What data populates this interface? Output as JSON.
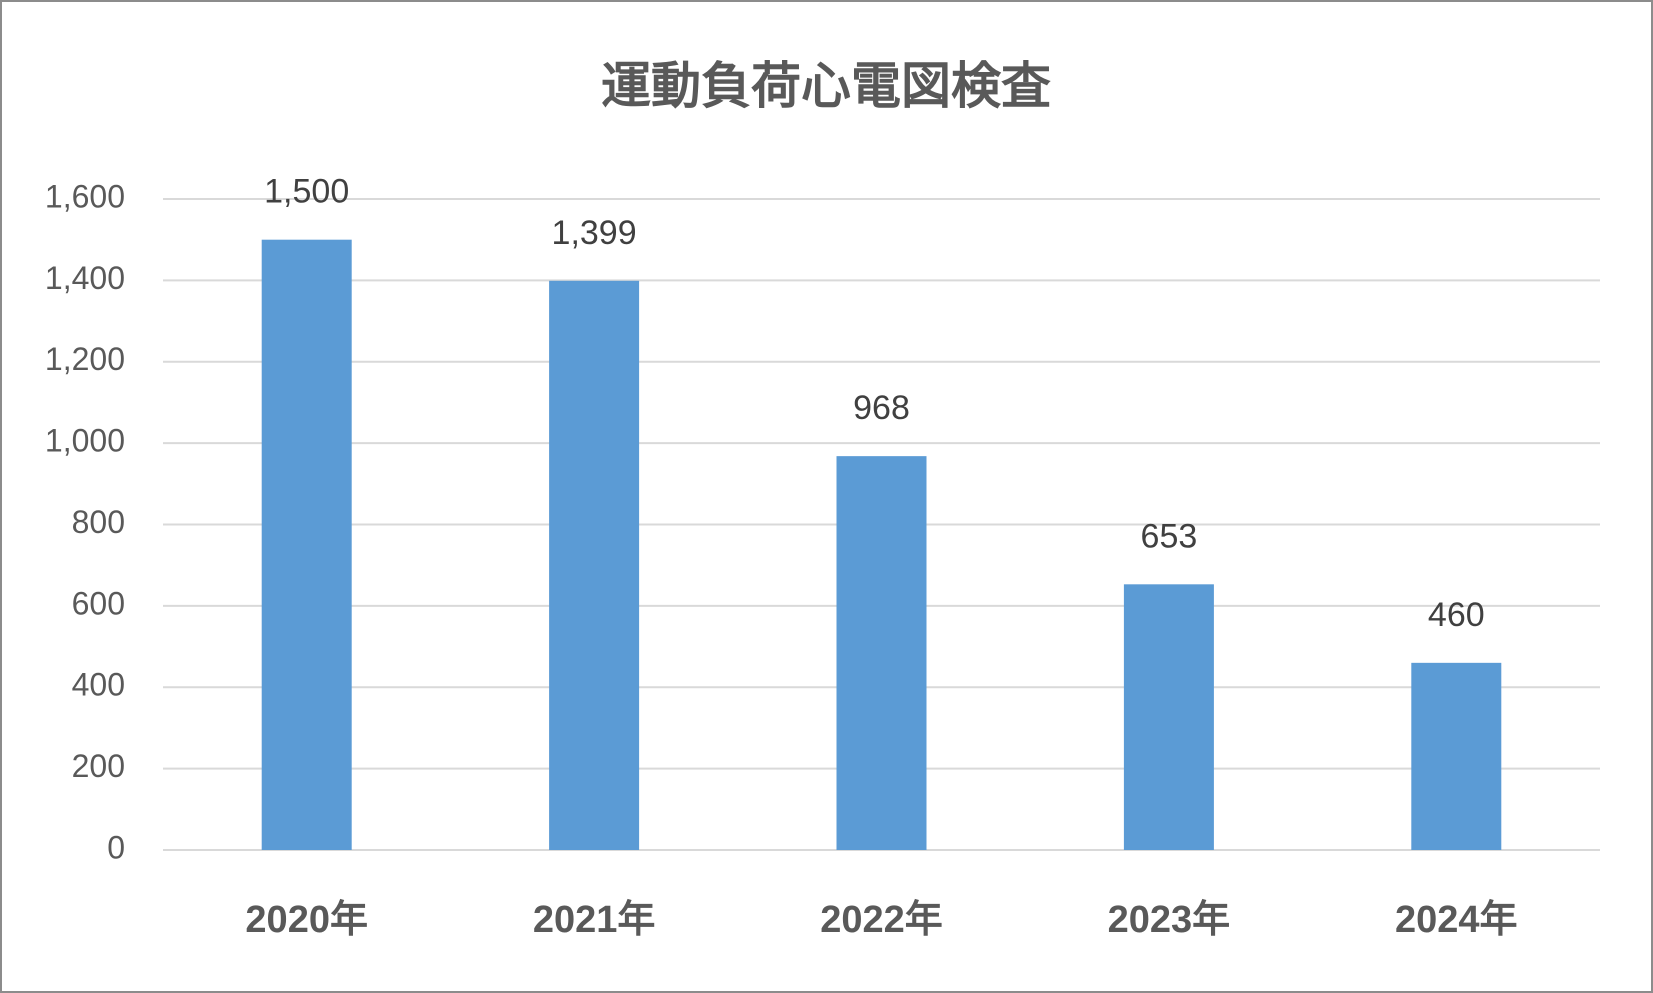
{
  "chart_data": {
    "type": "bar",
    "title": "運動負荷心電図検査",
    "categories": [
      "2020年",
      "2021年",
      "2022年",
      "2023年",
      "2024年"
    ],
    "values": [
      1500,
      1399,
      968,
      653,
      460
    ],
    "value_labels": [
      "1,500",
      "1,399",
      "968",
      "653",
      "460"
    ],
    "color": "#5b9bd5",
    "ylim": [
      0,
      1600
    ],
    "yticks": [
      0,
      200,
      400,
      600,
      800,
      {
        "value": 1000,
        "label": "1,000"
      },
      {
        "value": 1200,
        "label": "1,200"
      },
      {
        "value": 1400,
        "label": "1,400"
      },
      {
        "value": 1600,
        "label": "1,600"
      }
    ],
    "grid": true
  }
}
